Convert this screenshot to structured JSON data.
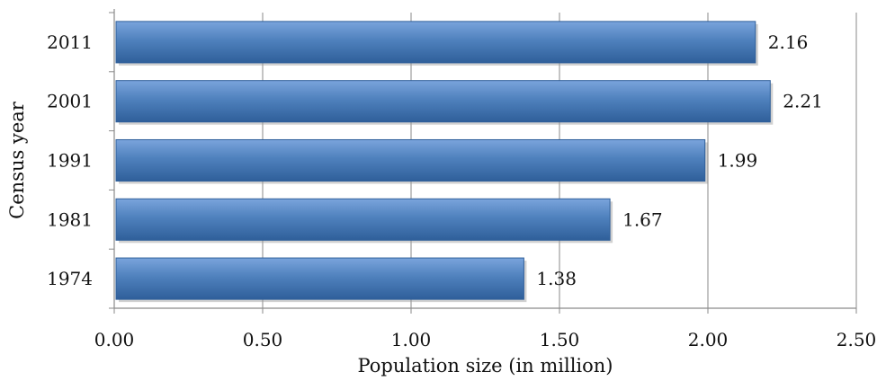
{
  "chart_data": {
    "type": "bar",
    "orientation": "horizontal",
    "categories": [
      "2011",
      "2001",
      "1991",
      "1981",
      "1974"
    ],
    "values": [
      2.16,
      2.21,
      1.99,
      1.67,
      1.38
    ],
    "data_labels": [
      "2.16",
      "2.21",
      "1.99",
      "1.67",
      "1.38"
    ],
    "xlabel": "Population size (in million)",
    "ylabel": "Census year",
    "xlim": [
      0,
      2.5
    ],
    "x_ticks": [
      0,
      0.5,
      1.0,
      1.5,
      2.0,
      2.5
    ],
    "x_tick_labels": [
      "0.00",
      "0.50",
      "1.00",
      "1.50",
      "2.00",
      "2.50"
    ],
    "grid": "vertical",
    "legend": "none",
    "bar_color": "#4f81bd",
    "bar_color_light": "#7aa4dc",
    "bar_color_dark": "#2f5f9a"
  }
}
